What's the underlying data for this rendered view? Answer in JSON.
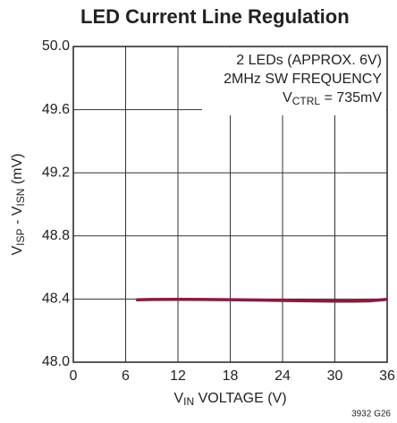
{
  "chart_data": {
    "type": "line",
    "title": "LED Current Line Regulation",
    "xlabel_parts": [
      "V",
      "IN",
      " VOLTAGE (V)"
    ],
    "ylabel_parts": [
      "V",
      "ISP",
      " - V",
      "ISN",
      " (mV)"
    ],
    "annotations": [
      "2 LEDs (APPROX. 6V)",
      "2MHz SW FREQUENCY"
    ],
    "annotation_ctrl_parts": [
      "V",
      "CTRL",
      " = 735mV"
    ],
    "footnote": "3932 G26",
    "x": [
      7.2,
      9,
      12,
      15,
      18,
      21,
      24,
      27,
      30,
      32,
      34,
      36
    ],
    "series": [
      {
        "name": "VISP - VISN",
        "color": "#8c1c3c",
        "values": [
          48.395,
          48.397,
          48.398,
          48.397,
          48.396,
          48.394,
          48.391,
          48.389,
          48.387,
          48.387,
          48.389,
          48.398
        ]
      }
    ],
    "xlim": [
      0,
      36
    ],
    "xticks": [
      0,
      6,
      12,
      18,
      24,
      30,
      36
    ],
    "ylim": [
      48.0,
      50.0
    ],
    "yticks": [
      {
        "value": 48.0,
        "label": "48.0"
      },
      48.4,
      48.8,
      49.2,
      49.6,
      {
        "value": 50.0,
        "label": "50.0"
      }
    ],
    "grid": true
  }
}
